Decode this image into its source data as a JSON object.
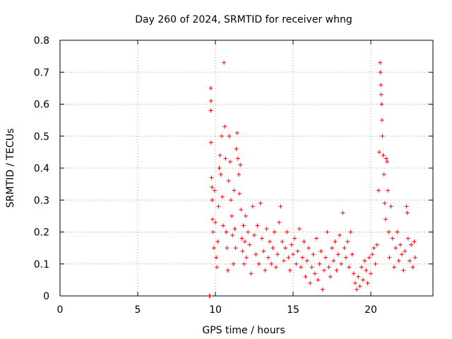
{
  "chart_data": {
    "type": "scatter",
    "title": "Day 260 of 2024, SRMTID for receiver whng",
    "xlabel": "GPS time / hours",
    "ylabel": "SRMTID / TECUs",
    "xlim": [
      0,
      24
    ],
    "ylim": [
      0,
      0.8
    ],
    "xticks": [
      "0",
      "5",
      "10",
      "15",
      "20"
    ],
    "xtick_values": [
      0,
      5,
      10,
      15,
      20
    ],
    "yticks": [
      "0",
      "0.1",
      "0.2",
      "0.3",
      "0.4",
      "0.5",
      "0.6",
      "0.7",
      "0.8"
    ],
    "ytick_values": [
      0,
      0.1,
      0.2,
      0.3,
      0.4,
      0.5,
      0.6,
      0.7,
      0.8
    ],
    "grid": true,
    "marker": "+",
    "color": "#ff0000",
    "series": [
      {
        "name": "SRMTID",
        "points": [
          [
            9.6,
            0.0
          ],
          [
            9.65,
            0.0
          ],
          [
            9.7,
            0.65
          ],
          [
            9.72,
            0.61
          ],
          [
            9.7,
            0.58
          ],
          [
            9.72,
            0.48
          ],
          [
            9.75,
            0.37
          ],
          [
            9.78,
            0.34
          ],
          [
            9.8,
            0.3
          ],
          [
            9.82,
            0.24
          ],
          [
            9.85,
            0.2
          ],
          [
            9.9,
            0.15
          ],
          [
            9.95,
            0.33
          ],
          [
            10.0,
            0.23
          ],
          [
            10.05,
            0.12
          ],
          [
            10.1,
            0.09
          ],
          [
            10.15,
            0.17
          ],
          [
            10.2,
            0.28
          ],
          [
            10.25,
            0.4
          ],
          [
            10.3,
            0.44
          ],
          [
            10.35,
            0.38
          ],
          [
            10.4,
            0.5
          ],
          [
            10.45,
            0.31
          ],
          [
            10.5,
            0.22
          ],
          [
            10.55,
            0.73
          ],
          [
            10.6,
            0.53
          ],
          [
            10.65,
            0.43
          ],
          [
            10.7,
            0.2
          ],
          [
            10.75,
            0.15
          ],
          [
            10.8,
            0.08
          ],
          [
            10.85,
            0.36
          ],
          [
            10.9,
            0.5
          ],
          [
            10.95,
            0.42
          ],
          [
            11.0,
            0.3
          ],
          [
            11.05,
            0.25
          ],
          [
            11.1,
            0.19
          ],
          [
            11.15,
            0.1
          ],
          [
            11.2,
            0.33
          ],
          [
            11.25,
            0.21
          ],
          [
            11.3,
            0.15
          ],
          [
            11.35,
            0.46
          ],
          [
            11.4,
            0.51
          ],
          [
            11.45,
            0.43
          ],
          [
            11.5,
            0.38
          ],
          [
            11.55,
            0.32
          ],
          [
            11.6,
            0.41
          ],
          [
            11.65,
            0.27
          ],
          [
            11.7,
            0.18
          ],
          [
            11.75,
            0.14
          ],
          [
            11.8,
            0.22
          ],
          [
            11.85,
            0.1
          ],
          [
            11.9,
            0.17
          ],
          [
            11.95,
            0.25
          ],
          [
            12.0,
            0.12
          ],
          [
            12.1,
            0.2
          ],
          [
            12.2,
            0.16
          ],
          [
            12.3,
            0.07
          ],
          [
            12.4,
            0.28
          ],
          [
            12.5,
            0.19
          ],
          [
            12.6,
            0.13
          ],
          [
            12.7,
            0.22
          ],
          [
            12.8,
            0.1
          ],
          [
            12.9,
            0.29
          ],
          [
            13.0,
            0.18
          ],
          [
            13.1,
            0.14
          ],
          [
            13.2,
            0.08
          ],
          [
            13.3,
            0.21
          ],
          [
            13.4,
            0.12
          ],
          [
            13.5,
            0.17
          ],
          [
            13.6,
            0.1
          ],
          [
            13.7,
            0.15
          ],
          [
            13.8,
            0.2
          ],
          [
            13.9,
            0.09
          ],
          [
            14.0,
            0.13
          ],
          [
            14.1,
            0.23
          ],
          [
            14.2,
            0.28
          ],
          [
            14.3,
            0.17
          ],
          [
            14.4,
            0.11
          ],
          [
            14.5,
            0.15
          ],
          [
            14.6,
            0.2
          ],
          [
            14.7,
            0.12
          ],
          [
            14.8,
            0.08
          ],
          [
            14.9,
            0.16
          ],
          [
            15.0,
            0.13
          ],
          [
            15.1,
            0.18
          ],
          [
            15.2,
            0.1
          ],
          [
            15.3,
            0.14
          ],
          [
            15.4,
            0.21
          ],
          [
            15.5,
            0.09
          ],
          [
            15.6,
            0.12
          ],
          [
            15.7,
            0.17
          ],
          [
            15.8,
            0.06
          ],
          [
            15.9,
            0.11
          ],
          [
            16.0,
            0.15
          ],
          [
            16.1,
            0.04
          ],
          [
            16.2,
            0.09
          ],
          [
            16.3,
            0.13
          ],
          [
            16.4,
            0.07
          ],
          [
            16.5,
            0.18
          ],
          [
            16.6,
            0.05
          ],
          [
            16.7,
            0.1
          ],
          [
            16.8,
            0.14
          ],
          [
            16.9,
            0.02
          ],
          [
            17.0,
            0.08
          ],
          [
            17.1,
            0.12
          ],
          [
            17.2,
            0.2
          ],
          [
            17.3,
            0.09
          ],
          [
            17.4,
            0.06
          ],
          [
            17.5,
            0.15
          ],
          [
            17.6,
            0.11
          ],
          [
            17.7,
            0.17
          ],
          [
            17.8,
            0.08
          ],
          [
            17.9,
            0.13
          ],
          [
            18.0,
            0.19
          ],
          [
            18.1,
            0.1
          ],
          [
            18.2,
            0.26
          ],
          [
            18.3,
            0.15
          ],
          [
            18.4,
            0.12
          ],
          [
            18.5,
            0.17
          ],
          [
            18.6,
            0.09
          ],
          [
            18.7,
            0.2
          ],
          [
            18.8,
            0.13
          ],
          [
            18.9,
            0.07
          ],
          [
            19.0,
            0.04
          ],
          [
            19.1,
            0.02
          ],
          [
            19.2,
            0.06
          ],
          [
            19.3,
            0.03
          ],
          [
            19.4,
            0.09
          ],
          [
            19.5,
            0.05
          ],
          [
            19.6,
            0.11
          ],
          [
            19.7,
            0.08
          ],
          [
            19.8,
            0.04
          ],
          [
            19.9,
            0.12
          ],
          [
            20.0,
            0.07
          ],
          [
            20.1,
            0.13
          ],
          [
            20.2,
            0.15
          ],
          [
            20.3,
            0.1
          ],
          [
            20.4,
            0.16
          ],
          [
            20.5,
            0.33
          ],
          [
            20.55,
            0.45
          ],
          [
            20.6,
            0.73
          ],
          [
            20.62,
            0.7
          ],
          [
            20.65,
            0.66
          ],
          [
            20.67,
            0.63
          ],
          [
            20.7,
            0.6
          ],
          [
            20.72,
            0.55
          ],
          [
            20.75,
            0.5
          ],
          [
            20.8,
            0.44
          ],
          [
            20.85,
            0.38
          ],
          [
            20.9,
            0.29
          ],
          [
            20.95,
            0.24
          ],
          [
            21.0,
            0.43
          ],
          [
            21.05,
            0.42
          ],
          [
            21.1,
            0.33
          ],
          [
            21.15,
            0.2
          ],
          [
            21.2,
            0.12
          ],
          [
            21.3,
            0.28
          ],
          [
            21.4,
            0.18
          ],
          [
            21.5,
            0.09
          ],
          [
            21.6,
            0.15
          ],
          [
            21.7,
            0.2
          ],
          [
            21.8,
            0.11
          ],
          [
            21.9,
            0.16
          ],
          [
            22.0,
            0.13
          ],
          [
            22.1,
            0.08
          ],
          [
            22.2,
            0.14
          ],
          [
            22.3,
            0.28
          ],
          [
            22.35,
            0.26
          ],
          [
            22.4,
            0.18
          ],
          [
            22.5,
            0.11
          ],
          [
            22.6,
            0.16
          ],
          [
            22.7,
            0.09
          ],
          [
            22.8,
            0.17
          ],
          [
            22.85,
            0.12
          ]
        ]
      }
    ]
  }
}
